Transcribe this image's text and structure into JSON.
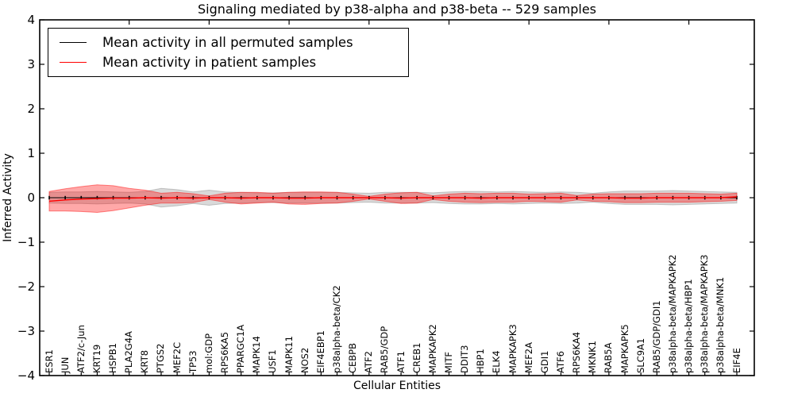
{
  "figure": {
    "title": "Signaling mediated by p38-alpha and p38-beta -- 529 samples",
    "xlabel": "Cellular Entities",
    "ylabel": "Inferred Activity"
  },
  "legend": {
    "items": [
      {
        "label": "Mean activity in all permuted samples",
        "color": "#000000"
      },
      {
        "label": "Mean activity in patient samples",
        "color": "#ff0000"
      }
    ]
  },
  "chart_data": {
    "type": "area",
    "title": "Signaling mediated by p38-alpha and p38-beta -- 529 samples",
    "xlabel": "Cellular Entities",
    "ylabel": "Inferred Activity",
    "ylim": [
      -4,
      4
    ],
    "yticks": [
      -4,
      -3,
      -2,
      -1,
      0,
      1,
      2,
      3,
      4
    ],
    "grid": false,
    "legend_position": "upper left",
    "categories": [
      "ESR1",
      "JUN",
      "ATF2/c-Jun",
      "KRT19",
      "HSPB1",
      "PLA2G4A",
      "KRT8",
      "PTGS2",
      "MEF2C",
      "TP53",
      "mol:GDP",
      "RPS6KA5",
      "PPARGC1A",
      "MAPK14",
      "USF1",
      "MAPK11",
      "NOS2",
      "EIF4EBP1",
      "p38alpha-beta/CK2",
      "CEBPB",
      "ATF2",
      "RAB5/GDP",
      "ATF1",
      "CREB1",
      "MAPKAPK2",
      "MITF",
      "DDIT3",
      "HBP1",
      "ELK4",
      "MAPKAPK3",
      "MEF2A",
      "GDI1",
      "ATF6",
      "RPS6KA4",
      "MKNK1",
      "RAB5A",
      "MAPKAPK5",
      "SLC9A1",
      "RAB5/GDP/GDI1",
      "p38alpha-beta/MAPKAPK2",
      "p38alpha-beta/HBP1",
      "p38alpha-beta/MAPKAPK3",
      "p38alpha-beta/MNK1",
      "EIF4E"
    ],
    "series": [
      {
        "name": "Mean activity in all permuted samples",
        "color": "#000000",
        "values": [
          0,
          0,
          0,
          0,
          0,
          0,
          0,
          0,
          0,
          0,
          0,
          0,
          0,
          0,
          0,
          0,
          0,
          0,
          0,
          0,
          0,
          0,
          0,
          0,
          0,
          0,
          0,
          0,
          0,
          0,
          0,
          0,
          0,
          0,
          0,
          0,
          0,
          0,
          0,
          0,
          0,
          0,
          0,
          0
        ],
        "band": {
          "name": "permuted-std-band",
          "color": "#808080",
          "alpha": 0.3,
          "half_widths": [
            0.12,
            0.13,
            0.13,
            0.14,
            0.13,
            0.12,
            0.14,
            0.21,
            0.18,
            0.13,
            0.17,
            0.13,
            0.12,
            0.11,
            0.11,
            0.12,
            0.12,
            0.12,
            0.12,
            0.11,
            0.1,
            0.12,
            0.12,
            0.12,
            0.11,
            0.13,
            0.14,
            0.14,
            0.13,
            0.14,
            0.13,
            0.12,
            0.13,
            0.12,
            0.1,
            0.13,
            0.15,
            0.15,
            0.15,
            0.16,
            0.15,
            0.14,
            0.13,
            0.12
          ]
        }
      },
      {
        "name": "Mean activity in patient samples",
        "color": "#ff0000",
        "values": [
          -0.08,
          -0.05,
          -0.03,
          -0.02,
          -0.01,
          -0.01,
          0,
          -0.01,
          0,
          -0.01,
          0,
          0,
          -0.01,
          0,
          0,
          -0.01,
          -0.01,
          0,
          0,
          0,
          0,
          0,
          -0.01,
          0,
          0,
          0,
          0,
          -0.01,
          0,
          0,
          0,
          0,
          0,
          0,
          0,
          0,
          -0.01,
          -0.01,
          0,
          0,
          0,
          0,
          0,
          0.02
        ],
        "band": {
          "name": "patient-std-band",
          "color": "#ff0000",
          "alpha": 0.34,
          "half_widths": [
            0.22,
            0.25,
            0.28,
            0.31,
            0.28,
            0.22,
            0.17,
            0.11,
            0.12,
            0.1,
            0.04,
            0.1,
            0.13,
            0.12,
            0.1,
            0.13,
            0.14,
            0.13,
            0.12,
            0.08,
            0.03,
            0.08,
            0.12,
            0.12,
            0.04,
            0.08,
            0.1,
            0.1,
            0.1,
            0.1,
            0.08,
            0.09,
            0.1,
            0.05,
            0.08,
            0.09,
            0.1,
            0.1,
            0.1,
            0.1,
            0.1,
            0.09,
            0.08,
            0.08
          ]
        }
      }
    ]
  }
}
